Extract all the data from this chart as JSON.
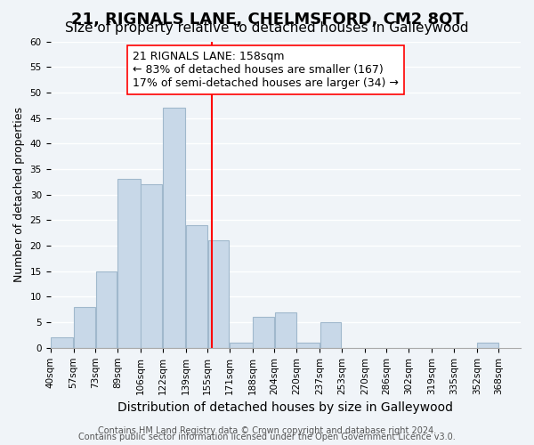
{
  "title": "21, RIGNALS LANE, CHELMSFORD, CM2 8QT",
  "subtitle": "Size of property relative to detached houses in Galleywood",
  "xlabel": "Distribution of detached houses by size in Galleywood",
  "ylabel": "Number of detached properties",
  "bar_left_edges": [
    40,
    57,
    73,
    89,
    106,
    122,
    139,
    155,
    171,
    188,
    204,
    220,
    237,
    253,
    270,
    286,
    302,
    319,
    335,
    352
  ],
  "bar_widths": [
    17,
    16,
    16,
    17,
    16,
    17,
    16,
    16,
    17,
    16,
    16,
    17,
    16,
    17,
    16,
    16,
    17,
    16,
    17,
    16
  ],
  "bar_heights": [
    2,
    8,
    15,
    33,
    32,
    47,
    24,
    21,
    1,
    6,
    7,
    1,
    5,
    0,
    0,
    0,
    0,
    0,
    0,
    1
  ],
  "bar_color": "#c8d8e8",
  "bar_edge_color": "#a0b8cc",
  "x_tick_labels": [
    "40sqm",
    "57sqm",
    "73sqm",
    "89sqm",
    "106sqm",
    "122sqm",
    "139sqm",
    "155sqm",
    "171sqm",
    "188sqm",
    "204sqm",
    "220sqm",
    "237sqm",
    "253sqm",
    "270sqm",
    "286sqm",
    "302sqm",
    "319sqm",
    "335sqm",
    "352sqm",
    "368sqm"
  ],
  "x_tick_positions": [
    40,
    57,
    73,
    89,
    106,
    122,
    139,
    155,
    171,
    188,
    204,
    220,
    237,
    253,
    270,
    286,
    302,
    319,
    335,
    352,
    368
  ],
  "ylim": [
    0,
    60
  ],
  "yticks": [
    0,
    5,
    10,
    15,
    20,
    25,
    30,
    35,
    40,
    45,
    50,
    55,
    60
  ],
  "property_line_x": 158,
  "annotation_title": "21 RIGNALS LANE: 158sqm",
  "annotation_line1": "← 83% of detached houses are smaller (167)",
  "annotation_line2": "17% of semi-detached houses are larger (34) →",
  "footer_line1": "Contains HM Land Registry data © Crown copyright and database right 2024.",
  "footer_line2": "Contains public sector information licensed under the Open Government Licence v3.0.",
  "background_color": "#f0f4f8",
  "grid_color": "#ffffff",
  "title_fontsize": 13,
  "subtitle_fontsize": 11,
  "xlabel_fontsize": 10,
  "ylabel_fontsize": 9,
  "tick_fontsize": 7.5,
  "annotation_fontsize": 9,
  "footer_fontsize": 7
}
